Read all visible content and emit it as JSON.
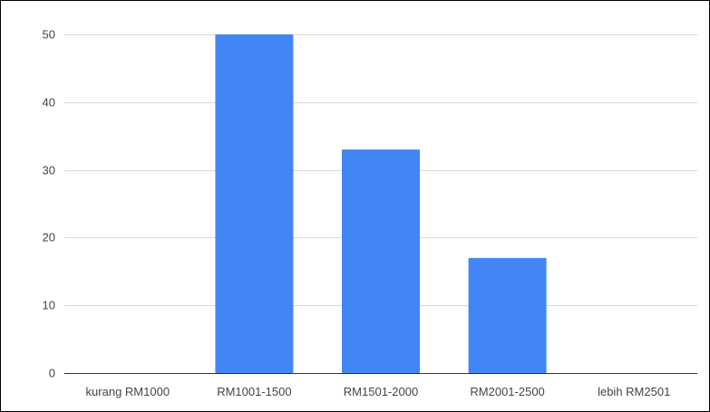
{
  "chart_data": {
    "type": "bar",
    "title": "",
    "xlabel": "",
    "ylabel": "",
    "categories": [
      "kurang RM1000",
      "RM1001-1500",
      "RM1501-2000",
      "RM2001-2500",
      "lebih RM2501"
    ],
    "values": [
      0,
      50,
      33,
      17,
      0
    ],
    "ylim": [
      0,
      50
    ],
    "yticks": [
      0,
      10,
      20,
      30,
      40,
      50
    ],
    "grid": true,
    "legend": "none",
    "colors": {
      "bar": "#4285f4",
      "grid": "#d9d9d9",
      "baseline": "#333333",
      "tick_text": "#444444"
    }
  }
}
